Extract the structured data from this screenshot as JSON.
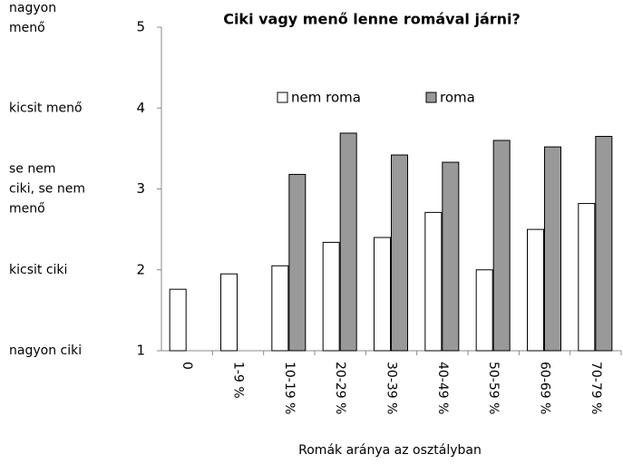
{
  "chart_data": {
    "type": "bar",
    "title": "Ciki vagy menő lenne romával járni?",
    "x_label": "Romák aránya az osztályban",
    "categories": [
      "0",
      "1-9 %",
      "10-19 %",
      "20-29 %",
      "30-39 %",
      "40-49 %",
      "50-59 %",
      "60-69 %",
      "70-79 %"
    ],
    "series": [
      {
        "name": "nem roma",
        "color": "#ffffff",
        "values": [
          1.76,
          1.95,
          2.05,
          2.34,
          2.4,
          2.71,
          2.0,
          2.5,
          2.82
        ]
      },
      {
        "name": "roma",
        "color": "#999999",
        "values": [
          null,
          null,
          3.18,
          3.69,
          3.42,
          3.33,
          3.6,
          3.52,
          3.65
        ]
      }
    ],
    "ylim": [
      1,
      5
    ],
    "yticks": [
      1,
      2,
      3,
      4,
      5
    ],
    "scale_labels": [
      [
        "nagyon ciki"
      ],
      [
        "kicsit ciki"
      ],
      [
        "se nem",
        "ciki, se nem",
        "menő"
      ],
      [
        "kicsit menő"
      ],
      [
        "nagyon",
        "menő"
      ]
    ],
    "grid": false,
    "legend": "top"
  }
}
